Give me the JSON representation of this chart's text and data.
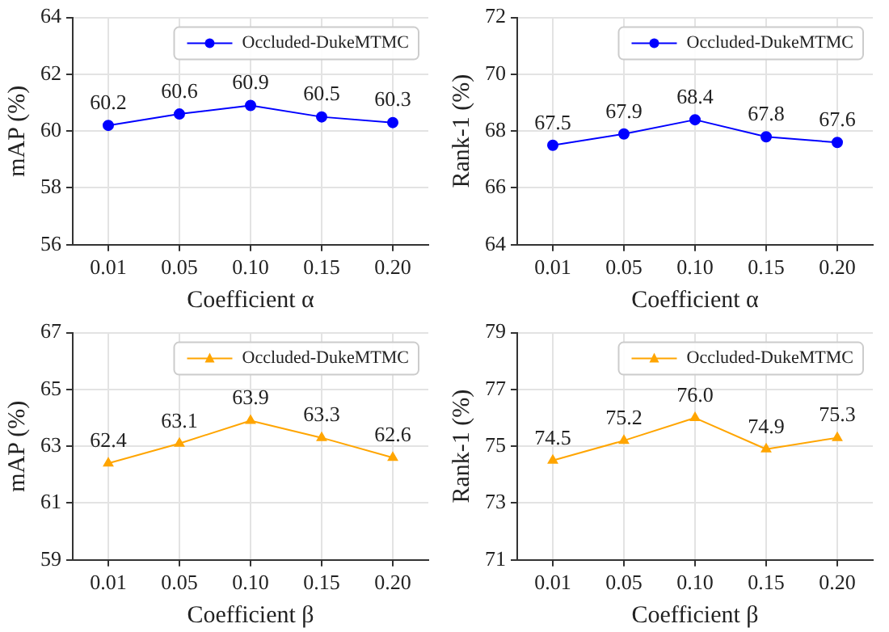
{
  "chart_data": [
    {
      "type": "line",
      "xlabel": "Coefficient α",
      "ylabel": "mAP (%)",
      "categories": [
        "0.01",
        "0.05",
        "0.10",
        "0.15",
        "0.20"
      ],
      "series": [
        {
          "name": "Occluded-DukeMTMC",
          "color": "#0000ff",
          "values": [
            60.2,
            60.6,
            60.9,
            60.5,
            60.3
          ]
        }
      ],
      "ylim": [
        56,
        64
      ],
      "yticks": [
        56,
        58,
        60,
        62,
        64
      ],
      "grid": true,
      "legend": "top right",
      "marker": "circle",
      "data_labels": true
    },
    {
      "type": "line",
      "xlabel": "Coefficient α",
      "ylabel": "Rank-1 (%)",
      "categories": [
        "0.01",
        "0.05",
        "0.10",
        "0.15",
        "0.20"
      ],
      "series": [
        {
          "name": "Occluded-DukeMTMC",
          "color": "#0000ff",
          "values": [
            67.5,
            67.9,
            68.4,
            67.8,
            67.6
          ]
        }
      ],
      "ylim": [
        64,
        72
      ],
      "yticks": [
        64,
        66,
        68,
        70,
        72
      ],
      "grid": true,
      "legend": "top right",
      "marker": "circle",
      "data_labels": true
    },
    {
      "type": "line",
      "xlabel": "Coefficient β",
      "ylabel": "mAP (%)",
      "categories": [
        "0.01",
        "0.05",
        "0.10",
        "0.15",
        "0.20"
      ],
      "series": [
        {
          "name": "Occluded-DukeMTMC",
          "color": "#ffa500",
          "values": [
            62.4,
            63.1,
            63.9,
            63.3,
            62.6
          ]
        }
      ],
      "ylim": [
        59,
        67
      ],
      "yticks": [
        59,
        61,
        63,
        65,
        67
      ],
      "grid": true,
      "legend": "top right",
      "marker": "triangle",
      "data_labels": true
    },
    {
      "type": "line",
      "xlabel": "Coefficient β",
      "ylabel": "Rank-1 (%)",
      "categories": [
        "0.01",
        "0.05",
        "0.10",
        "0.15",
        "0.20"
      ],
      "series": [
        {
          "name": "Occluded-DukeMTMC",
          "color": "#ffa500",
          "values": [
            74.5,
            75.2,
            76.0,
            74.9,
            75.3
          ],
          "value_labels": [
            "74.5",
            "75.2",
            "76.0",
            "74.9",
            "75.3"
          ]
        }
      ],
      "ylim": [
        71,
        79
      ],
      "yticks": [
        71,
        73,
        75,
        77,
        79
      ],
      "grid": true,
      "legend": "top right",
      "marker": "triangle"
    }
  ]
}
